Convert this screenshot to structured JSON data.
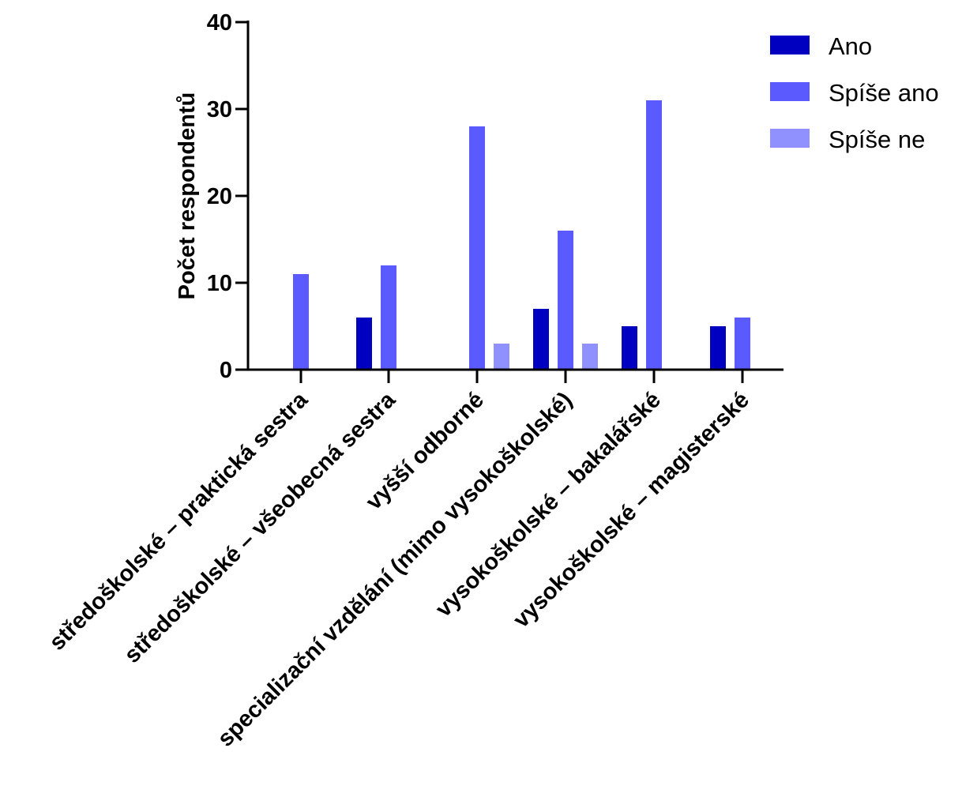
{
  "chart_data": {
    "type": "bar",
    "title": "",
    "xlabel": "",
    "ylabel": "Počet respondentů",
    "ylim": [
      0,
      40
    ],
    "yticks": [
      0,
      10,
      20,
      30,
      40
    ],
    "grid": false,
    "legend_position": "top-right",
    "categories": [
      "středoškolské – praktická sestra",
      "středoškolské – všeobecná sestra",
      "vyšší odborné",
      "specializační vzdělání (mimo vysokoškolské)",
      "vysokoškolské – bakalářské",
      "vysokoškolské – magisterské"
    ],
    "series": [
      {
        "name": "Ano",
        "color": "#0000c0",
        "values": [
          0,
          6,
          0,
          7,
          5,
          5
        ]
      },
      {
        "name": "Spíše ano",
        "color": "#5a5aff",
        "values": [
          11,
          12,
          28,
          16,
          31,
          6
        ]
      },
      {
        "name": "Spíše ne",
        "color": "#9090ff",
        "values": [
          0,
          0,
          3,
          3,
          0,
          0
        ]
      }
    ]
  }
}
